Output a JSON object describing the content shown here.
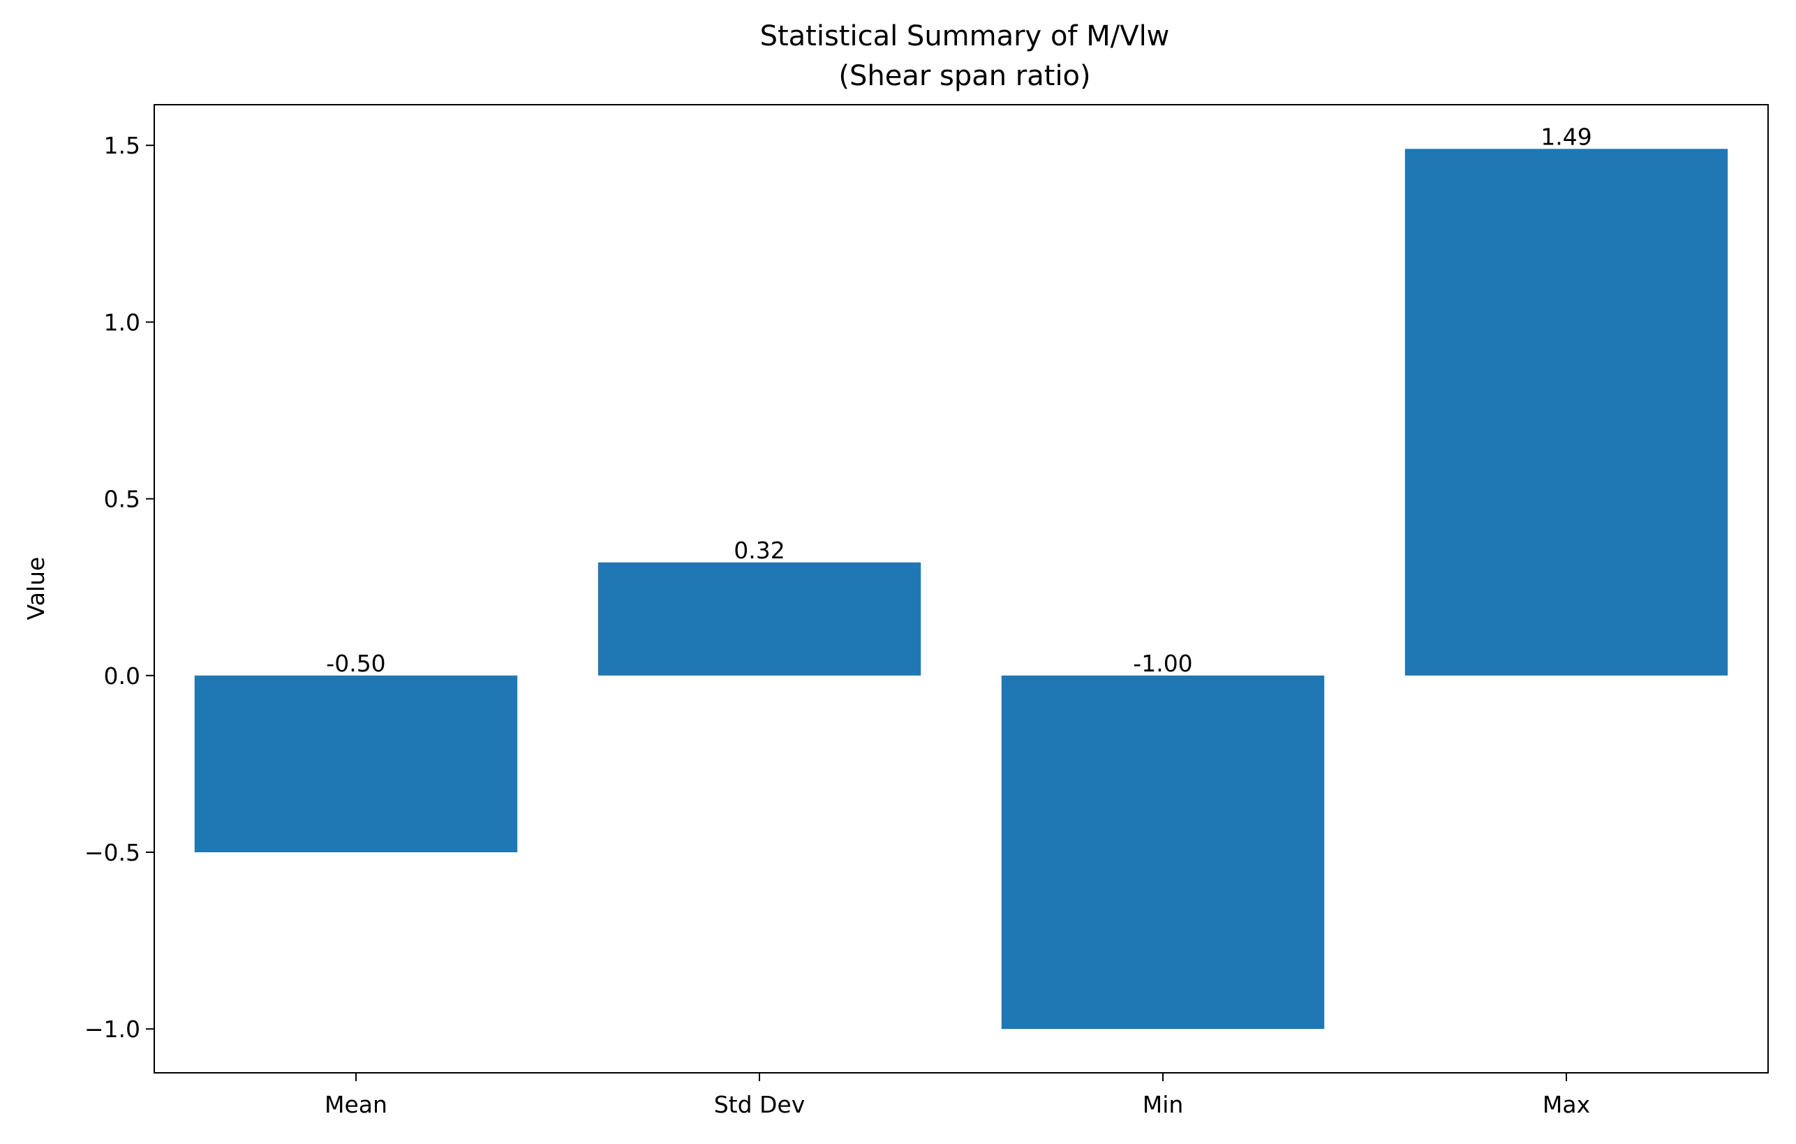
{
  "chart_data": {
    "type": "bar",
    "title": "Statistical Summary of M/Vlw",
    "subtitle": "(Shear span ratio)",
    "xlabel": "",
    "ylabel": "Value",
    "categories": [
      "Mean",
      "Std Dev",
      "Min",
      "Max"
    ],
    "values": [
      -0.5,
      0.32,
      -1.0,
      1.49
    ],
    "value_labels": [
      "-0.50",
      "0.32",
      "-1.00",
      "1.49"
    ],
    "ylim": [
      -1.124,
      1.615
    ],
    "yticks": [
      -1.0,
      -0.5,
      0.0,
      0.5,
      1.0,
      1.5
    ],
    "ytick_labels": [
      "−1.0",
      "−0.5",
      "0.0",
      "0.5",
      "1.0",
      "1.5"
    ],
    "bar_color": "#1f77b4",
    "grid": false,
    "legend": "none"
  }
}
